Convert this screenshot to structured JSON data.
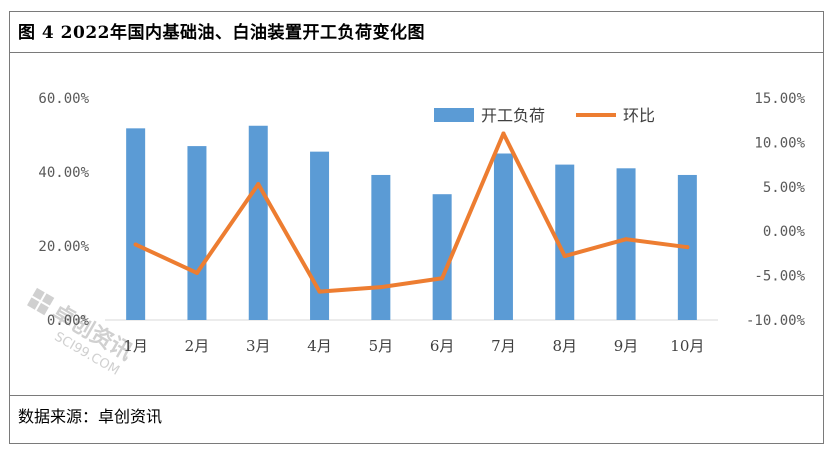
{
  "title": "图 4  2022年国内基础油、白油装置开工负荷变化图",
  "source": "数据来源：卓创资讯",
  "watermark": {
    "text": "卓创资讯",
    "subtext": "SCI99.COM"
  },
  "colors": {
    "bar": "#5b9bd5",
    "line": "#ed7d31",
    "axis_text": "#595959"
  },
  "chart_data": {
    "type": "bar",
    "categories": [
      "1月",
      "2月",
      "3月",
      "4月",
      "5月",
      "6月",
      "7月",
      "8月",
      "9月",
      "10月"
    ],
    "series": [
      {
        "name": "开工负荷",
        "type": "bar",
        "axis": "left",
        "values": [
          51.8,
          47.0,
          52.5,
          45.5,
          39.2,
          34.0,
          45.0,
          42.0,
          41.0,
          39.2
        ]
      },
      {
        "name": "环比",
        "type": "line",
        "axis": "right",
        "values": [
          -1.5,
          -4.7,
          5.3,
          -6.8,
          -6.3,
          -5.3,
          11.0,
          -2.8,
          -0.9,
          -1.8
        ]
      }
    ],
    "y_left": {
      "ylim": [
        0,
        60
      ],
      "ticks": [
        0,
        20,
        40,
        60
      ],
      "tick_labels": [
        "0.00%",
        "20.00%",
        "40.00%",
        "60.00%"
      ]
    },
    "y_right": {
      "ylim": [
        -10,
        15
      ],
      "ticks": [
        -10,
        -5,
        0,
        5,
        10,
        15
      ],
      "tick_labels": [
        "-10.00%",
        "-5.00%",
        "0.00%",
        "5.00%",
        "10.00%",
        "15.00%"
      ]
    },
    "legend": {
      "placement": "top-right",
      "entries": [
        "开工负荷",
        "环比"
      ]
    },
    "grid": false
  }
}
